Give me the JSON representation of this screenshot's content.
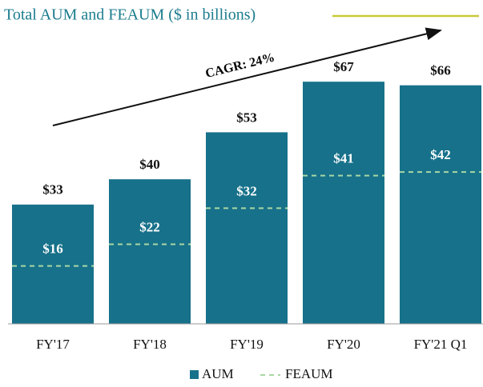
{
  "chart_data": {
    "type": "bar",
    "title": "Total AUM and FEAUM ($ in billions)",
    "annotation": "CAGR: 24%",
    "categories": [
      "FY'17",
      "FY'18",
      "FY'19",
      "FY'20",
      "FY'21 Q1"
    ],
    "series": [
      {
        "name": "AUM",
        "color": "#17718a",
        "values": [
          33,
          40,
          53,
          67,
          66
        ],
        "value_labels": [
          "$33",
          "$40",
          "$53",
          "$67",
          "$66"
        ]
      },
      {
        "name": "FEAUM",
        "color": "#a9d7a4",
        "values": [
          16,
          22,
          32,
          41,
          42
        ],
        "value_labels": [
          "$16",
          "$22",
          "$32",
          "$41",
          "$42"
        ]
      }
    ]
  }
}
